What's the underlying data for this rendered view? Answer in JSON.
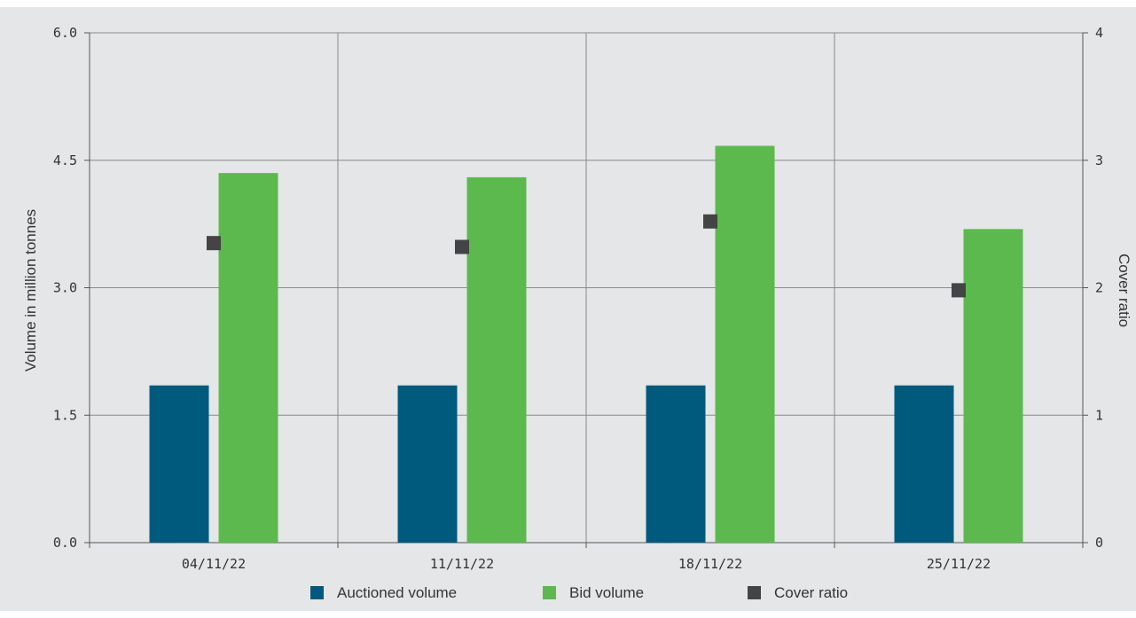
{
  "chart_data": {
    "type": "bar",
    "categories": [
      "04/11/22",
      "11/11/22",
      "18/11/22",
      "25/11/22"
    ],
    "series": [
      {
        "name": "Auctioned volume",
        "axis": "left",
        "kind": "bar",
        "color": "#005a7d",
        "values": [
          1.85,
          1.85,
          1.85,
          1.85
        ]
      },
      {
        "name": "Bid volume",
        "axis": "left",
        "kind": "bar",
        "color": "#5cb94e",
        "values": [
          4.35,
          4.3,
          4.67,
          3.69
        ]
      },
      {
        "name": "Cover ratio",
        "axis": "right",
        "kind": "marker",
        "color": "#444444",
        "values": [
          2.35,
          2.32,
          2.52,
          1.98
        ]
      }
    ],
    "ylabel": "Volume in million tonnes",
    "y2label": "Cover ratio",
    "ylim": [
      0,
      6
    ],
    "y2lim": [
      0,
      4
    ],
    "yticks": [
      "0.0",
      "1.5",
      "3.0",
      "4.5",
      "6.0"
    ],
    "y2ticks": [
      "0",
      "1",
      "2",
      "3",
      "4"
    ],
    "grid": true,
    "legend_position": "bottom"
  }
}
